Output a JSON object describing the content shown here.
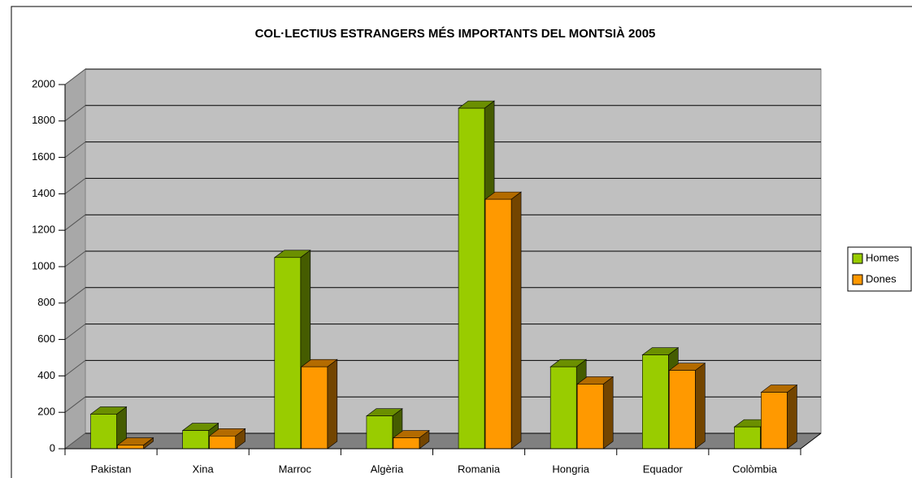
{
  "chart_data": {
    "type": "bar3d",
    "title": "COL·LECTIUS ESTRANGERS MÉS IMPORTANTS DEL MONTSIÀ 2005",
    "categories": [
      "Pakistan",
      "Xina",
      "Marroc",
      "Algèria",
      "Romania",
      "Hongria",
      "Equador",
      "Colòmbia"
    ],
    "series": [
      {
        "name": "Homes",
        "color": "#99cc00",
        "values": [
          190,
          100,
          1050,
          180,
          1870,
          450,
          515,
          120
        ]
      },
      {
        "name": "Dones",
        "color": "#ff9900",
        "values": [
          20,
          70,
          450,
          60,
          1370,
          355,
          430,
          310
        ]
      }
    ],
    "ylim": [
      0,
      2000
    ],
    "yticks": [
      0,
      200,
      400,
      600,
      800,
      1000,
      1200,
      1400,
      1600,
      1800,
      2000
    ],
    "grid": true,
    "legend": "right"
  }
}
